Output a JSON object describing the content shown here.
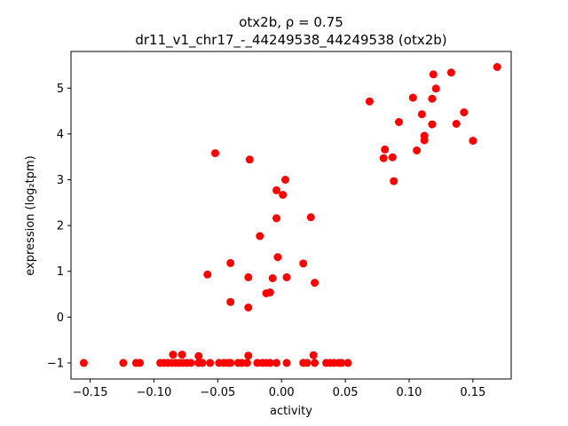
{
  "chart_data": {
    "type": "scatter",
    "title_line1": "otx2b, ρ = 0.75",
    "title_line2": "dr11_v1_chr17_-_44249538_44249538 (otx2b)",
    "xlabel": "activity",
    "ylabel": "expression (log₂tpm)",
    "xlim": [
      -0.165,
      0.18
    ],
    "ylim": [
      -1.35,
      5.8
    ],
    "xticks": [
      -0.15,
      -0.1,
      -0.05,
      0.0,
      0.05,
      0.1,
      0.15
    ],
    "xtick_labels": [
      "−0.15",
      "−0.10",
      "−0.05",
      "0.00",
      "0.05",
      "0.10",
      "0.15"
    ],
    "yticks": [
      -1,
      0,
      1,
      2,
      3,
      4,
      5
    ],
    "ytick_labels": [
      "−1",
      "0",
      "1",
      "2",
      "3",
      "4",
      "5"
    ],
    "grid": false,
    "marker_color": "#ff0000",
    "points": [
      {
        "x": -0.155,
        "y": -1.0
      },
      {
        "x": -0.124,
        "y": -1.0
      },
      {
        "x": -0.114,
        "y": -1.0
      },
      {
        "x": -0.111,
        "y": -1.0
      },
      {
        "x": -0.095,
        "y": -1.0
      },
      {
        "x": -0.092,
        "y": -1.0
      },
      {
        "x": -0.089,
        "y": -1.0
      },
      {
        "x": -0.086,
        "y": -1.0
      },
      {
        "x": -0.083,
        "y": -1.0
      },
      {
        "x": -0.08,
        "y": -1.0
      },
      {
        "x": -0.077,
        "y": -1.0
      },
      {
        "x": -0.074,
        "y": -1.0
      },
      {
        "x": -0.071,
        "y": -1.0
      },
      {
        "x": -0.065,
        "y": -1.0
      },
      {
        "x": -0.062,
        "y": -1.0
      },
      {
        "x": -0.056,
        "y": -1.0
      },
      {
        "x": -0.049,
        "y": -1.0
      },
      {
        "x": -0.045,
        "y": -1.0
      },
      {
        "x": -0.042,
        "y": -1.0
      },
      {
        "x": -0.04,
        "y": -1.0
      },
      {
        "x": -0.034,
        "y": -1.0
      },
      {
        "x": -0.031,
        "y": -1.0
      },
      {
        "x": -0.027,
        "y": -1.0
      },
      {
        "x": -0.019,
        "y": -1.0
      },
      {
        "x": -0.015,
        "y": -1.0
      },
      {
        "x": -0.012,
        "y": -1.0
      },
      {
        "x": -0.009,
        "y": -1.0
      },
      {
        "x": -0.004,
        "y": -1.0
      },
      {
        "x": 0.004,
        "y": -1.0
      },
      {
        "x": 0.017,
        "y": -1.0
      },
      {
        "x": 0.02,
        "y": -1.0
      },
      {
        "x": 0.026,
        "y": -1.0
      },
      {
        "x": 0.035,
        "y": -1.0
      },
      {
        "x": 0.038,
        "y": -1.0
      },
      {
        "x": 0.041,
        "y": -1.0
      },
      {
        "x": 0.045,
        "y": -1.0
      },
      {
        "x": 0.047,
        "y": -1.0
      },
      {
        "x": 0.052,
        "y": -1.0
      },
      {
        "x": -0.085,
        "y": -0.82
      },
      {
        "x": -0.078,
        "y": -0.82
      },
      {
        "x": -0.065,
        "y": -0.85
      },
      {
        "x": -0.026,
        "y": -0.84
      },
      {
        "x": 0.025,
        "y": -0.83
      },
      {
        "x": -0.052,
        "y": 3.58
      },
      {
        "x": -0.025,
        "y": 3.44
      },
      {
        "x": 0.003,
        "y": 3.0
      },
      {
        "x": -0.004,
        "y": 2.77
      },
      {
        "x": 0.001,
        "y": 2.67
      },
      {
        "x": -0.004,
        "y": 2.16
      },
      {
        "x": 0.023,
        "y": 2.18
      },
      {
        "x": -0.017,
        "y": 1.77
      },
      {
        "x": -0.003,
        "y": 1.31
      },
      {
        "x": -0.04,
        "y": 1.18
      },
      {
        "x": 0.017,
        "y": 1.17
      },
      {
        "x": -0.058,
        "y": 0.93
      },
      {
        "x": -0.026,
        "y": 0.87
      },
      {
        "x": -0.007,
        "y": 0.85
      },
      {
        "x": 0.004,
        "y": 0.87
      },
      {
        "x": 0.026,
        "y": 0.75
      },
      {
        "x": -0.012,
        "y": 0.52
      },
      {
        "x": -0.009,
        "y": 0.54
      },
      {
        "x": -0.04,
        "y": 0.33
      },
      {
        "x": -0.026,
        "y": 0.21
      },
      {
        "x": 0.069,
        "y": 4.71
      },
      {
        "x": 0.081,
        "y": 3.66
      },
      {
        "x": 0.08,
        "y": 3.47
      },
      {
        "x": 0.087,
        "y": 3.49
      },
      {
        "x": 0.088,
        "y": 2.97
      },
      {
        "x": 0.092,
        "y": 4.26
      },
      {
        "x": 0.103,
        "y": 4.79
      },
      {
        "x": 0.106,
        "y": 3.64
      },
      {
        "x": 0.11,
        "y": 4.43
      },
      {
        "x": 0.112,
        "y": 3.96
      },
      {
        "x": 0.112,
        "y": 3.86
      },
      {
        "x": 0.118,
        "y": 4.21
      },
      {
        "x": 0.118,
        "y": 4.77
      },
      {
        "x": 0.119,
        "y": 5.3
      },
      {
        "x": 0.121,
        "y": 4.99
      },
      {
        "x": 0.133,
        "y": 5.34
      },
      {
        "x": 0.137,
        "y": 4.22
      },
      {
        "x": 0.143,
        "y": 4.47
      },
      {
        "x": 0.15,
        "y": 3.85
      },
      {
        "x": 0.169,
        "y": 5.46
      }
    ]
  }
}
